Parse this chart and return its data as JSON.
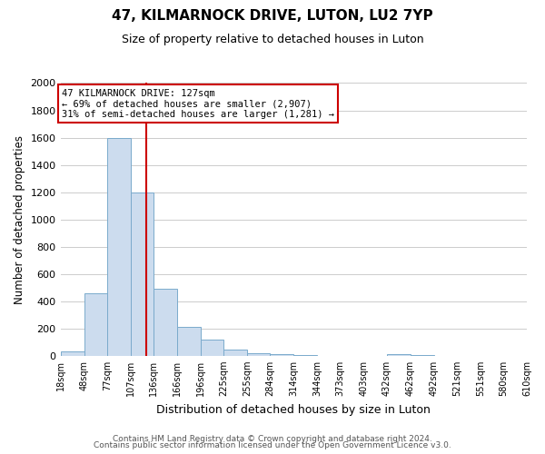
{
  "title": "47, KILMARNOCK DRIVE, LUTON, LU2 7YP",
  "subtitle": "Size of property relative to detached houses in Luton",
  "xlabel": "Distribution of detached houses by size in Luton",
  "ylabel": "Number of detached properties",
  "bin_labels": [
    "18sqm",
    "48sqm",
    "77sqm",
    "107sqm",
    "136sqm",
    "166sqm",
    "196sqm",
    "225sqm",
    "255sqm",
    "284sqm",
    "314sqm",
    "344sqm",
    "373sqm",
    "403sqm",
    "432sqm",
    "462sqm",
    "492sqm",
    "521sqm",
    "551sqm",
    "580sqm",
    "610sqm"
  ],
  "bin_edges": [
    18,
    48,
    77,
    107,
    136,
    166,
    196,
    225,
    255,
    284,
    314,
    344,
    373,
    403,
    432,
    462,
    492,
    521,
    551,
    580,
    610
  ],
  "bar_heights": [
    35,
    460,
    1600,
    1200,
    490,
    210,
    120,
    45,
    20,
    15,
    5,
    0,
    0,
    0,
    15,
    5,
    0,
    0,
    0,
    0
  ],
  "bar_color": "#ccdcee",
  "bar_edge_color": "#7aaacc",
  "property_value": 127,
  "vline_color": "#cc0000",
  "ylim": [
    0,
    2000
  ],
  "yticks": [
    0,
    200,
    400,
    600,
    800,
    1000,
    1200,
    1400,
    1600,
    1800,
    2000
  ],
  "annotation_line1": "47 KILMARNOCK DRIVE: 127sqm",
  "annotation_line2": "← 69% of detached houses are smaller (2,907)",
  "annotation_line3": "31% of semi-detached houses are larger (1,281) →",
  "annotation_box_color": "#ffffff",
  "annotation_box_edge_color": "#cc0000",
  "footer_line1": "Contains HM Land Registry data © Crown copyright and database right 2024.",
  "footer_line2": "Contains public sector information licensed under the Open Government Licence v3.0.",
  "background_color": "#ffffff",
  "grid_color": "#cccccc"
}
